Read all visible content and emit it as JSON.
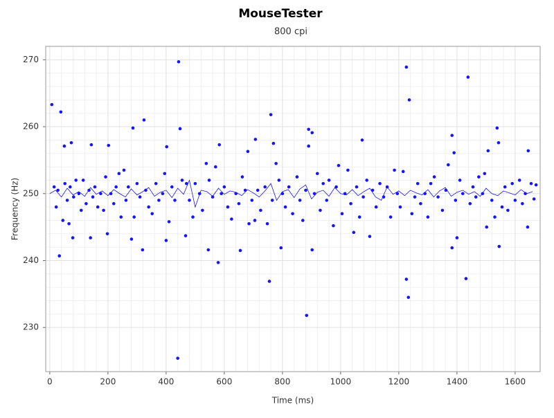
{
  "chart_data": {
    "type": "scatter",
    "title": "MouseTester",
    "subtitle": "800 cpi",
    "x_label": "Time (ms)",
    "y_label": "Frequency (Hz)",
    "xlim": [
      -14,
      1686
    ],
    "ylim": [
      223.4,
      272
    ],
    "xticks": [
      0,
      200,
      400,
      600,
      800,
      1000,
      1200,
      1400,
      1600
    ],
    "yticks": [
      230,
      240,
      250,
      260,
      270
    ],
    "grid": true,
    "series": [
      {
        "type": "scatter",
        "color": "#1414ff",
        "x": [
          15,
          22,
          28,
          45,
          52,
          60,
          66,
          70,
          82,
          90,
          100,
          108,
          115,
          125,
          135,
          148,
          155,
          165,
          175,
          185,
          192,
          210,
          220,
          228,
          238,
          245,
          255,
          262,
          270,
          290,
          300,
          310,
          330,
          340,
          352,
          365,
          375,
          388,
          395,
          410,
          420,
          430,
          455,
          470,
          480,
          492,
          500,
          515,
          525,
          538,
          548,
          560,
          570,
          590,
          600,
          612,
          625,
          640,
          650,
          662,
          672,
          685,
          695,
          705,
          715,
          725,
          740,
          748,
          765,
          778,
          788,
          800,
          810,
          822,
          835,
          850,
          860,
          870,
          880,
          910,
          920,
          930,
          940,
          952,
          960,
          975,
          985,
          993,
          1005,
          1015,
          1025,
          1035,
          1045,
          1055,
          1065,
          1078,
          1090,
          1110,
          1122,
          1135,
          1148,
          1160,
          1172,
          1185,
          1195,
          1205,
          1215,
          1245,
          1255,
          1265,
          1275,
          1290,
          1300,
          1310,
          1322,
          1335,
          1350,
          1362,
          1370,
          1395,
          1410,
          1420,
          1445,
          1455,
          1465,
          1475,
          1488,
          1495,
          1520,
          1530,
          1555,
          1565,
          1575,
          1590,
          1600,
          1615,
          1625,
          1635,
          1655,
          1665,
          1672,
          7,
          38,
          33,
          50,
          74,
          79,
          140,
          143,
          202,
          198,
          286,
          281,
          324,
          319,
          402,
          400,
          443,
          448,
          440,
          467,
          545,
          579,
          583,
          655,
          681,
          707,
          755,
          760,
          769,
          795,
          883,
          890,
          902,
          902,
          890,
          1100,
          1074,
          1226,
          1236,
          1226,
          1233,
          1383,
          1390,
          1383,
          1400,
          1438,
          1431,
          1538,
          1545,
          1507,
          1502,
          1645,
          1643,
          1543
        ],
        "values": [
          251.0,
          248.0,
          250.5,
          246.0,
          251.5,
          249.0,
          245.5,
          251.0,
          249.5,
          252.0,
          250.0,
          247.5,
          252.0,
          248.5,
          250.5,
          249.5,
          251.0,
          248.0,
          250.0,
          247.5,
          252.5,
          250.0,
          248.5,
          251.0,
          253.0,
          246.5,
          253.5,
          249.0,
          251.0,
          246.5,
          251.5,
          249.5,
          250.5,
          248.0,
          247.0,
          251.5,
          249.0,
          250.0,
          253.0,
          245.8,
          251.0,
          249.0,
          252.0,
          251.5,
          249.0,
          246.5,
          251.5,
          250.0,
          247.5,
          254.5,
          252.0,
          249.5,
          254.0,
          250.0,
          251.0,
          248.0,
          246.2,
          250.0,
          248.5,
          252.5,
          250.5,
          245.5,
          249.0,
          246.0,
          250.5,
          247.5,
          251.0,
          245.5,
          249.0,
          254.5,
          252.0,
          250.0,
          248.0,
          251.0,
          247.0,
          252.5,
          249.0,
          246.0,
          250.5,
          250.0,
          253.0,
          247.5,
          251.5,
          249.0,
          252.0,
          245.2,
          251.0,
          254.2,
          247.0,
          250.0,
          253.5,
          248.5,
          244.2,
          251.0,
          246.5,
          249.5,
          252.0,
          250.5,
          248.0,
          251.5,
          249.5,
          251.0,
          246.5,
          253.5,
          250.0,
          248.0,
          253.3,
          247.0,
          249.5,
          251.5,
          248.5,
          250.0,
          246.5,
          251.5,
          252.5,
          249.5,
          247.5,
          250.5,
          254.3,
          249.0,
          252.0,
          250.0,
          248.5,
          251.0,
          249.5,
          252.5,
          250.0,
          253.0,
          249.0,
          246.5,
          248.0,
          251.0,
          247.5,
          251.5,
          249.0,
          252.0,
          248.5,
          250.0,
          251.5,
          249.2,
          251.3,
          263.3,
          262.2,
          240.7,
          257.1,
          257.6,
          243.4,
          243.4,
          257.3,
          257.2,
          244.0,
          259.8,
          243.2,
          261.0,
          241.6,
          257.0,
          243.0,
          269.7,
          259.7,
          225.4,
          243.7,
          241.6,
          239.7,
          257.3,
          241.5,
          256.3,
          258.1,
          236.9,
          261.8,
          257.5,
          241.9,
          231.8,
          259.6,
          259.1,
          241.6,
          257.1,
          243.6,
          258.0,
          268.9,
          264.0,
          237.2,
          234.5,
          258.7,
          256.1,
          241.9,
          243.4,
          267.4,
          237.3,
          259.8,
          242.1,
          256.4,
          245.0,
          256.4,
          245.0,
          257.6
        ]
      },
      {
        "type": "line",
        "color": "#1414ff",
        "x": [
          0,
          20,
          40,
          60,
          80,
          100,
          120,
          140,
          160,
          180,
          200,
          220,
          240,
          260,
          280,
          300,
          320,
          340,
          360,
          380,
          400,
          420,
          440,
          460,
          480,
          500,
          520,
          540,
          560,
          580,
          600,
          620,
          640,
          660,
          680,
          700,
          720,
          740,
          760,
          780,
          800,
          820,
          840,
          860,
          880,
          900,
          920,
          940,
          960,
          980,
          1000,
          1020,
          1040,
          1060,
          1080,
          1100,
          1120,
          1140,
          1160,
          1180,
          1200,
          1220,
          1240,
          1260,
          1280,
          1300,
          1320,
          1340,
          1360,
          1380,
          1400,
          1420,
          1440,
          1460,
          1480,
          1500,
          1520,
          1540,
          1560,
          1580,
          1600,
          1620,
          1640,
          1660
        ],
        "values": [
          250.0,
          250.5,
          249.5,
          250.8,
          249.8,
          250.3,
          249.6,
          250.9,
          249.9,
          250.4,
          249.7,
          250.6,
          250.0,
          249.5,
          250.7,
          249.8,
          250.3,
          250.9,
          249.6,
          250.2,
          250.5,
          249.4,
          250.8,
          249.9,
          252.0,
          248.0,
          250.5,
          250.3,
          249.6,
          250.8,
          249.9,
          250.4,
          250.2,
          249.7,
          250.6,
          250.1,
          249.5,
          250.4,
          251.5,
          249.0,
          250.3,
          250.6,
          249.4,
          250.7,
          251.3,
          249.2,
          250.2,
          250.5,
          249.6,
          250.9,
          250.0,
          249.8,
          250.6,
          249.7,
          250.3,
          250.8,
          249.5,
          249.0,
          251.0,
          249.9,
          250.4,
          249.7,
          250.5,
          250.1,
          249.8,
          250.6,
          249.5,
          250.4,
          250.9,
          249.6,
          250.2,
          250.5,
          249.9,
          250.3,
          249.6,
          250.8,
          250.0,
          249.7,
          250.4,
          250.1,
          249.8,
          250.6,
          250.0,
          250.3
        ]
      }
    ]
  }
}
